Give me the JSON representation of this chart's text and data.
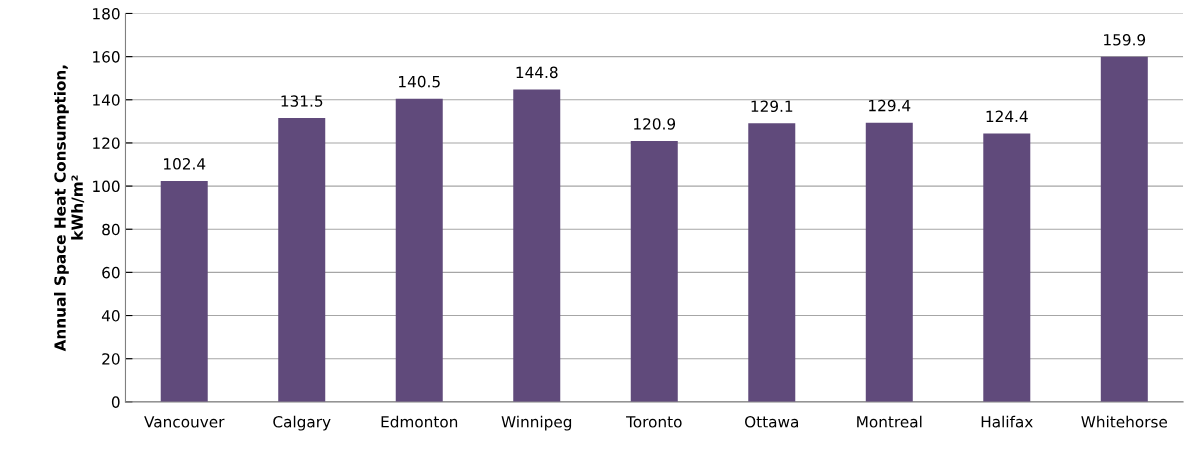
{
  "chart_data": {
    "type": "bar",
    "ylabel": "Annual Space Heat Consumption,\nkWh/m²",
    "categories": [
      "Vancouver",
      "Calgary",
      "Edmonton",
      "Winnipeg",
      "Toronto",
      "Ottawa",
      "Montreal",
      "Halifax",
      "Whitehorse"
    ],
    "values": [
      102.4,
      131.5,
      140.5,
      144.8,
      120.9,
      129.1,
      129.4,
      124.4,
      159.9
    ],
    "color": "#604a7b",
    "ylim": [
      0,
      180
    ],
    "yticks": [
      0,
      20,
      40,
      60,
      80,
      100,
      120,
      140,
      160,
      180
    ],
    "grid": "y",
    "data_labels": true,
    "legend": false
  }
}
